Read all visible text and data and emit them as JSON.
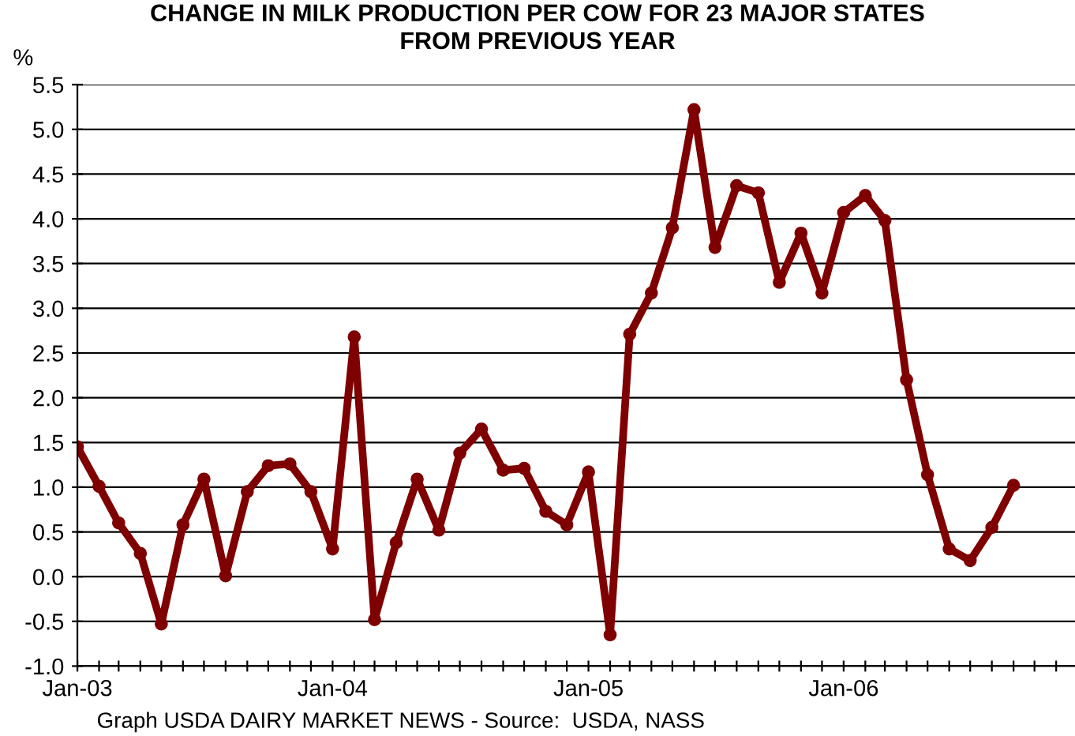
{
  "chart_data": {
    "type": "line",
    "title": "CHANGE IN MILK PRODUCTION PER COW FOR 23 MAJOR STATES\nFROM PREVIOUS YEAR",
    "ylabel": "%",
    "annotations": [
      "Graph USDA DAIRY MARKET NEWS - Source:  USDA, NASS"
    ],
    "x": [
      "2003-01",
      "2003-02",
      "2003-03",
      "2003-04",
      "2003-05",
      "2003-06",
      "2003-07",
      "2003-08",
      "2003-09",
      "2003-10",
      "2003-11",
      "2003-12",
      "2004-01",
      "2004-02",
      "2004-03",
      "2004-04",
      "2004-05",
      "2004-06",
      "2004-07",
      "2004-08",
      "2004-09",
      "2004-10",
      "2004-11",
      "2004-12",
      "2005-01",
      "2005-02",
      "2005-03",
      "2005-04",
      "2005-05",
      "2005-06",
      "2005-07",
      "2005-08",
      "2005-09",
      "2005-10",
      "2005-11",
      "2005-12",
      "2006-01",
      "2006-02",
      "2006-03",
      "2006-04",
      "2006-05",
      "2006-06",
      "2006-07",
      "2006-08",
      "2006-09"
    ],
    "series": [
      {
        "color": "#7f0000",
        "values": [
          1.45,
          1.01,
          0.6,
          0.26,
          -0.53,
          0.58,
          1.09,
          0.01,
          0.95,
          1.24,
          1.26,
          0.95,
          0.31,
          2.68,
          -0.48,
          0.38,
          1.09,
          0.52,
          1.38,
          1.65,
          1.19,
          1.21,
          0.73,
          0.58,
          1.17,
          -0.65,
          2.71,
          3.17,
          3.9,
          5.22,
          3.68,
          4.37,
          4.29,
          3.29,
          3.84,
          3.17,
          4.07,
          4.26,
          3.98,
          2.2,
          1.14,
          0.31,
          0.18,
          0.55,
          1.02
        ]
      }
    ],
    "xlim": [
      "2003-01",
      "2006-12"
    ],
    "xticks": [
      {
        "value": "2003-01",
        "label": "Jan-03"
      },
      {
        "value": "2003-02",
        "label": null
      },
      {
        "value": "2003-03",
        "label": null
      },
      {
        "value": "2003-04",
        "label": null
      },
      {
        "value": "2003-05",
        "label": null
      },
      {
        "value": "2003-06",
        "label": null
      },
      {
        "value": "2003-07",
        "label": null
      },
      {
        "value": "2003-08",
        "label": null
      },
      {
        "value": "2003-09",
        "label": null
      },
      {
        "value": "2003-10",
        "label": null
      },
      {
        "value": "2003-11",
        "label": null
      },
      {
        "value": "2003-12",
        "label": null
      },
      {
        "value": "2004-01",
        "label": "Jan-04"
      },
      {
        "value": "2004-02",
        "label": null
      },
      {
        "value": "2004-03",
        "label": null
      },
      {
        "value": "2004-04",
        "label": null
      },
      {
        "value": "2004-05",
        "label": null
      },
      {
        "value": "2004-06",
        "label": null
      },
      {
        "value": "2004-07",
        "label": null
      },
      {
        "value": "2004-08",
        "label": null
      },
      {
        "value": "2004-09",
        "label": null
      },
      {
        "value": "2004-10",
        "label": null
      },
      {
        "value": "2004-11",
        "label": null
      },
      {
        "value": "2004-12",
        "label": null
      },
      {
        "value": "2005-01",
        "label": "Jan-05"
      },
      {
        "value": "2005-02",
        "label": null
      },
      {
        "value": "2005-03",
        "label": null
      },
      {
        "value": "2005-04",
        "label": null
      },
      {
        "value": "2005-05",
        "label": null
      },
      {
        "value": "2005-06",
        "label": null
      },
      {
        "value": "2005-07",
        "label": null
      },
      {
        "value": "2005-08",
        "label": null
      },
      {
        "value": "2005-09",
        "label": null
      },
      {
        "value": "2005-10",
        "label": null
      },
      {
        "value": "2005-11",
        "label": null
      },
      {
        "value": "2005-12",
        "label": null
      },
      {
        "value": "2006-01",
        "label": "Jan-06"
      },
      {
        "value": "2006-02",
        "label": null
      },
      {
        "value": "2006-03",
        "label": null
      },
      {
        "value": "2006-04",
        "label": null
      },
      {
        "value": "2006-05",
        "label": null
      },
      {
        "value": "2006-06",
        "label": null
      },
      {
        "value": "2006-07",
        "label": null
      },
      {
        "value": "2006-08",
        "label": null
      },
      {
        "value": "2006-09",
        "label": null
      },
      {
        "value": "2006-10",
        "label": null
      },
      {
        "value": "2006-11",
        "label": null
      },
      {
        "value": "2006-12",
        "label": null
      }
    ],
    "ylim": [
      -1.0,
      5.5
    ],
    "yticks": [
      {
        "value": -1.0,
        "label": "-1.0"
      },
      {
        "value": -0.5,
        "label": "-0.5"
      },
      {
        "value": 0.0,
        "label": "0.0"
      },
      {
        "value": 0.5,
        "label": "0.5"
      },
      {
        "value": 1.0,
        "label": "1.0"
      },
      {
        "value": 1.5,
        "label": "1.5"
      },
      {
        "value": 2.0,
        "label": "2.0"
      },
      {
        "value": 2.5,
        "label": "2.5"
      },
      {
        "value": 3.0,
        "label": "3.0"
      },
      {
        "value": 3.5,
        "label": "3.5"
      },
      {
        "value": 4.0,
        "label": "4.0"
      },
      {
        "value": 4.5,
        "label": "4.5"
      },
      {
        "value": 5.0,
        "label": "5.0"
      },
      {
        "value": 5.5,
        "label": "5.5"
      }
    ],
    "grid": "y",
    "marker": "circle",
    "line_style": "solid",
    "legend": false
  }
}
